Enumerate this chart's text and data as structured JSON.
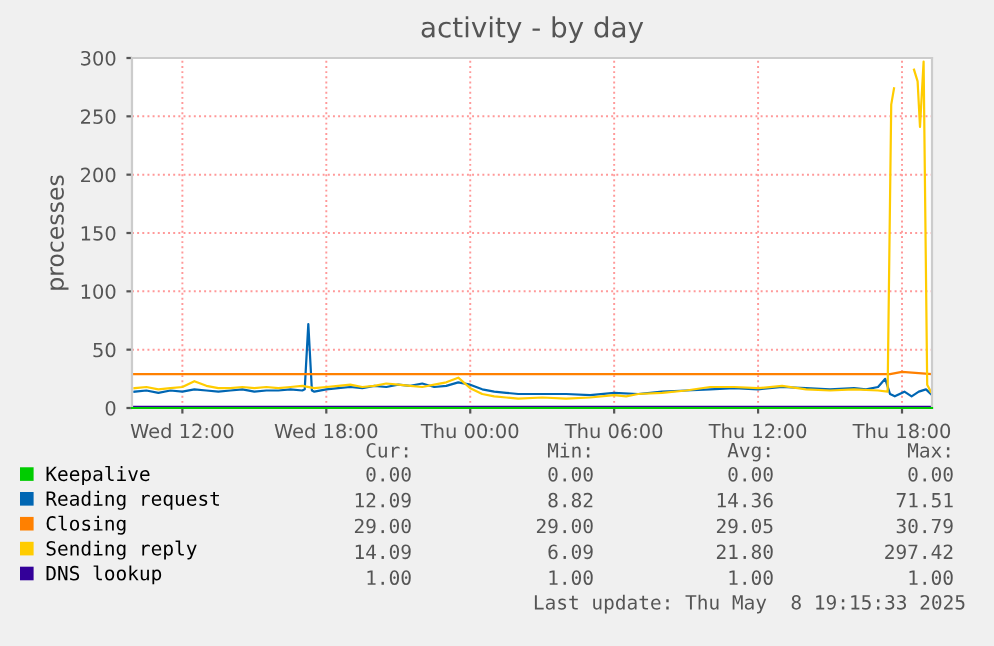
{
  "chart_data": {
    "type": "line",
    "title": "activity - by day",
    "ylabel": "processes",
    "xlim": [
      "2025-05-07T09:54",
      "2025-05-08T19:15"
    ],
    "xticks": [
      {
        "value": "2025-05-07T12:00",
        "label": "Wed 12:00"
      },
      {
        "value": "2025-05-07T18:00",
        "label": "Wed 18:00"
      },
      {
        "value": "2025-05-08T00:00",
        "label": "Thu 00:00"
      },
      {
        "value": "2025-05-08T06:00",
        "label": "Thu 06:00"
      },
      {
        "value": "2025-05-08T12:00",
        "label": "Thu 12:00"
      },
      {
        "value": "2025-05-08T18:00",
        "label": "Thu 18:00"
      }
    ],
    "ylim": [
      0,
      300
    ],
    "yticks": [
      0,
      50,
      100,
      150,
      200,
      250,
      300
    ],
    "grid": true,
    "legend": "bottom",
    "line_style": "solid",
    "marker": "none",
    "series": [
      {
        "name": "Keepalive",
        "color": "#00cc00",
        "x": [
          "2025-05-07T09:54",
          "2025-05-08T19:15"
        ],
        "values": [
          0,
          0
        ]
      },
      {
        "name": "Reading request",
        "color": "#0066b3",
        "x": [
          "2025-05-07T10:00",
          "2025-05-07T10:30",
          "2025-05-07T11:00",
          "2025-05-07T11:30",
          "2025-05-07T12:00",
          "2025-05-07T12:30",
          "2025-05-07T13:00",
          "2025-05-07T13:30",
          "2025-05-07T14:00",
          "2025-05-07T14:30",
          "2025-05-07T15:00",
          "2025-05-07T15:30",
          "2025-05-07T16:00",
          "2025-05-07T16:30",
          "2025-05-07T17:00",
          "2025-05-07T17:06",
          "2025-05-07T17:15",
          "2025-05-07T17:24",
          "2025-05-07T17:30",
          "2025-05-07T18:00",
          "2025-05-07T18:30",
          "2025-05-07T19:00",
          "2025-05-07T19:30",
          "2025-05-07T20:00",
          "2025-05-07T20:30",
          "2025-05-07T21:00",
          "2025-05-07T21:30",
          "2025-05-07T22:00",
          "2025-05-07T22:30",
          "2025-05-07T23:00",
          "2025-05-07T23:30",
          "2025-05-08T00:00",
          "2025-05-08T00:30",
          "2025-05-08T01:00",
          "2025-05-08T01:30",
          "2025-05-08T02:00",
          "2025-05-08T03:00",
          "2025-05-08T04:00",
          "2025-05-08T05:00",
          "2025-05-08T06:00",
          "2025-05-08T07:00",
          "2025-05-08T08:00",
          "2025-05-08T09:00",
          "2025-05-08T10:00",
          "2025-05-08T11:00",
          "2025-05-08T12:00",
          "2025-05-08T13:00",
          "2025-05-08T14:00",
          "2025-05-08T15:00",
          "2025-05-08T16:00",
          "2025-05-08T16:30",
          "2025-05-08T17:00",
          "2025-05-08T17:18",
          "2025-05-08T17:30",
          "2025-05-08T17:42",
          "2025-05-08T18:06",
          "2025-05-08T18:24",
          "2025-05-08T18:42",
          "2025-05-08T19:00",
          "2025-05-08T19:12"
        ],
        "values": [
          14,
          15,
          13,
          15,
          14,
          16,
          15,
          14,
          15,
          16,
          14,
          15,
          15,
          16,
          15,
          16,
          72,
          15,
          14,
          16,
          17,
          18,
          17,
          19,
          18,
          20,
          19,
          21,
          18,
          19,
          22,
          20,
          16,
          14,
          13,
          12,
          12,
          12,
          11,
          13,
          12,
          14,
          15,
          16,
          17,
          16,
          18,
          17,
          16,
          17,
          16,
          18,
          25,
          12,
          10,
          14,
          10,
          14,
          16,
          12
        ]
      },
      {
        "name": "Closing",
        "color": "#ff8000",
        "x": [
          "2025-05-07T09:54",
          "2025-05-07T20:00",
          "2025-05-08T06:00",
          "2025-05-08T17:30",
          "2025-05-08T18:00",
          "2025-05-08T19:15"
        ],
        "values": [
          29,
          29,
          29,
          29,
          31,
          29
        ]
      },
      {
        "name": "Sending reply",
        "color": "#ffcc00",
        "x": [
          "2025-05-07T10:00",
          "2025-05-07T10:30",
          "2025-05-07T11:00",
          "2025-05-07T11:30",
          "2025-05-07T12:00",
          "2025-05-07T12:30",
          "2025-05-07T13:00",
          "2025-05-07T13:30",
          "2025-05-07T14:00",
          "2025-05-07T14:30",
          "2025-05-07T15:00",
          "2025-05-07T15:30",
          "2025-05-07T16:00",
          "2025-05-07T16:30",
          "2025-05-07T17:00",
          "2025-05-07T17:30",
          "2025-05-07T18:00",
          "2025-05-07T18:30",
          "2025-05-07T19:00",
          "2025-05-07T19:30",
          "2025-05-07T20:00",
          "2025-05-07T20:30",
          "2025-05-07T21:00",
          "2025-05-07T21:30",
          "2025-05-07T22:00",
          "2025-05-07T22:30",
          "2025-05-07T23:00",
          "2025-05-07T23:30",
          "2025-05-08T00:00",
          "2025-05-08T00:30",
          "2025-05-08T01:00",
          "2025-05-08T01:30",
          "2025-05-08T02:00",
          "2025-05-08T03:00",
          "2025-05-08T04:00",
          "2025-05-08T05:00",
          "2025-05-08T06:00",
          "2025-05-08T06:30",
          "2025-05-08T07:00",
          "2025-05-08T08:00",
          "2025-05-08T09:00",
          "2025-05-08T10:00",
          "2025-05-08T11:00",
          "2025-05-08T12:00",
          "2025-05-08T13:00",
          "2025-05-08T14:00",
          "2025-05-08T15:00",
          "2025-05-08T16:00",
          "2025-05-08T17:00",
          "2025-05-08T17:24",
          "2025-05-08T17:33",
          "2025-05-08T17:40",
          "2025-05-08T17:45",
          "2025-05-08T18:24",
          "2025-05-08T18:30",
          "2025-05-08T18:39",
          "2025-05-08T18:45",
          "2025-05-08T18:54",
          "2025-05-08T19:03",
          "2025-05-08T19:12"
        ],
        "values": [
          17,
          18,
          16,
          17,
          18,
          23,
          19,
          17,
          17,
          18,
          17,
          18,
          17,
          18,
          19,
          17,
          18,
          19,
          20,
          18,
          19,
          21,
          20,
          19,
          18,
          20,
          22,
          26,
          17,
          12,
          10,
          9,
          8,
          9,
          8,
          9,
          11,
          10,
          12,
          13,
          15,
          18,
          18,
          17,
          19,
          16,
          15,
          16,
          15,
          14,
          260,
          274,
          null,
          null,
          290,
          280,
          241,
          297,
          20,
          14
        ]
      },
      {
        "name": "DNS lookup",
        "color": "#330099",
        "x": [
          "2025-05-07T09:54",
          "2025-05-08T19:15"
        ],
        "values": [
          1,
          1
        ]
      }
    ],
    "annotations": [
      "Cur:",
      "Min:",
      "Avg:",
      "Max:",
      "0.00",
      "0.00",
      "0.00",
      "0.00",
      "12.09",
      "8.82",
      "14.36",
      "71.51",
      "29.00",
      "29.00",
      "29.05",
      "30.79",
      "14.09",
      "6.09",
      "21.80",
      "297.42",
      "1.00",
      "1.00",
      "1.00",
      "1.00",
      "Last update: Thu May  8 19:15:33 2025"
    ]
  }
}
